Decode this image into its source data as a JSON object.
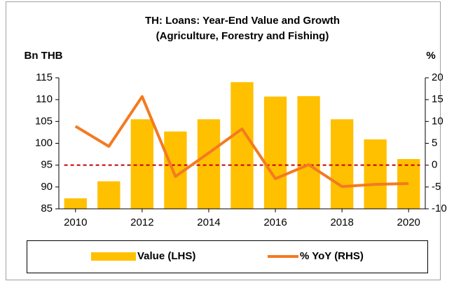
{
  "chart_data": {
    "type": "bar_line",
    "title": "TH: Loans: Year-End Value and Growth",
    "subtitle": "(Agriculture, Forestry and Fishing)",
    "y_label": "Bn THB",
    "y2_label": "%",
    "x": [
      2010,
      2011,
      2012,
      2013,
      2014,
      2015,
      2016,
      2017,
      2018,
      2019,
      2020
    ],
    "xlim": [
      2009.5,
      2020.5
    ],
    "xticks": [
      2010,
      2012,
      2014,
      2016,
      2018,
      2020
    ],
    "ylim": [
      85,
      115
    ],
    "yticks": [
      85,
      90,
      95,
      100,
      105,
      110,
      115
    ],
    "y2lim": [
      -10,
      20
    ],
    "y2ticks": [
      -10,
      -5,
      0,
      5,
      10,
      15,
      20
    ],
    "y2_refline": 0,
    "refline_color": "#c00000",
    "series": [
      {
        "name": "Value (LHS)",
        "type": "bar",
        "color": "#ffc000",
        "values": [
          87.4,
          91.3,
          105.5,
          102.7,
          105.5,
          114.0,
          110.7,
          110.8,
          105.5,
          100.9,
          96.4
        ]
      },
      {
        "name": "% YoY (RHS)",
        "type": "line",
        "axis": "y2",
        "color": "#f47a20",
        "values": [
          8.9,
          4.3,
          15.7,
          -2.6,
          2.8,
          8.3,
          -3.1,
          0.1,
          -4.9,
          -4.4,
          -4.2
        ]
      }
    ],
    "grid": false,
    "legend": "bottom"
  }
}
